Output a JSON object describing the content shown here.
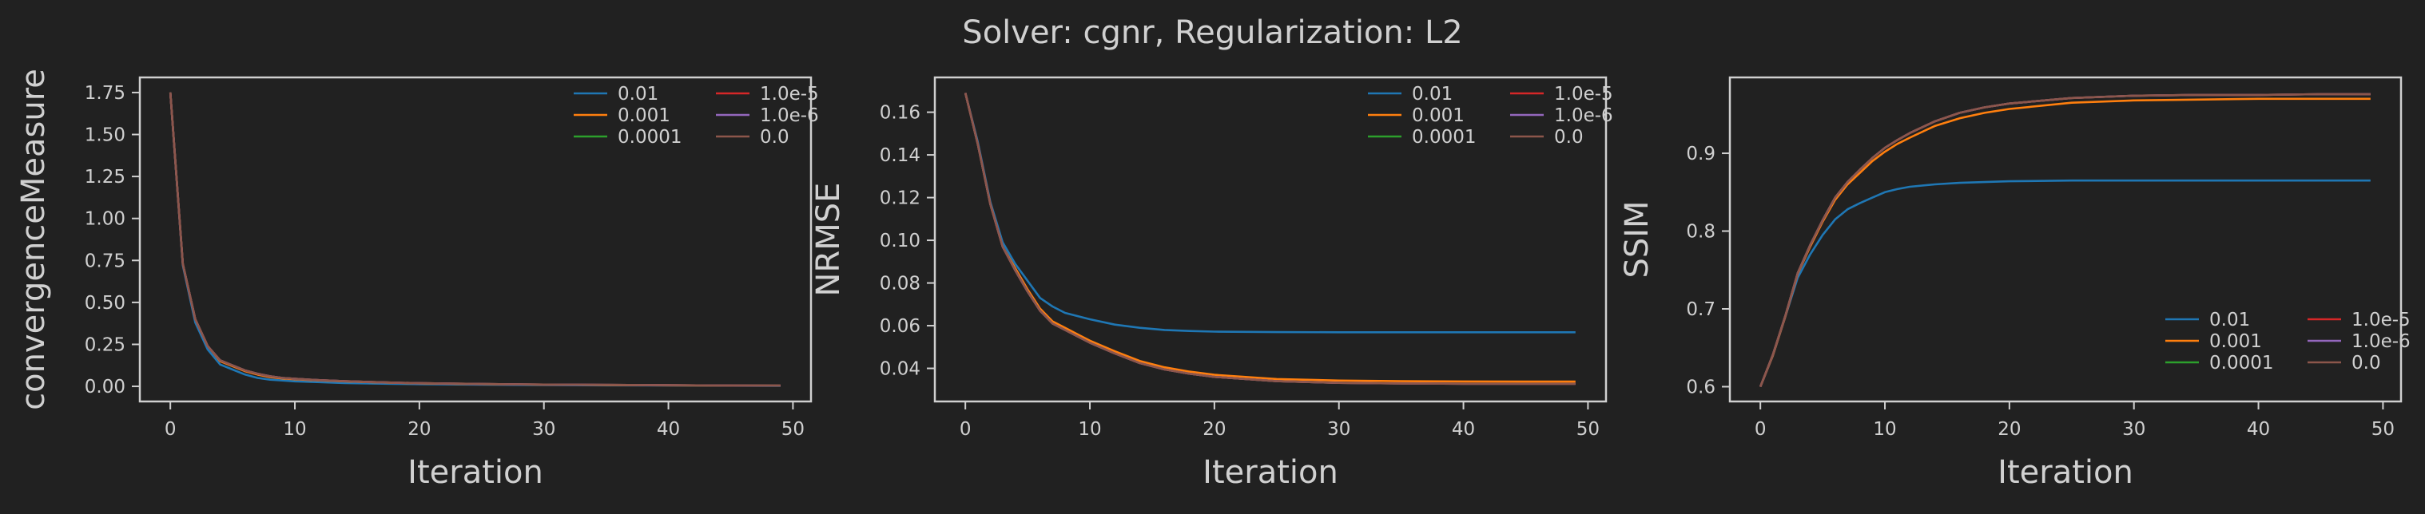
{
  "figure": {
    "title": "Solver: cgnr, Regularization: L2"
  },
  "colors": {
    "background": "#212121",
    "axes": "#d0d0d0",
    "series": [
      "#1f77b4",
      "#ff7f0e",
      "#2ca02c",
      "#d62728",
      "#9467bd",
      "#8c564b"
    ]
  },
  "chart_data": [
    {
      "type": "line",
      "title": "",
      "xlabel": "Iteration",
      "ylabel": "convergenceMeasure",
      "xlim": [
        -2.45,
        51.45
      ],
      "ylim": [
        -0.09,
        1.84
      ],
      "xticks": [
        "0",
        "10",
        "20",
        "30",
        "40",
        "50"
      ],
      "yticks": [
        "0.00",
        "0.25",
        "0.50",
        "0.75",
        "1.00",
        "1.25",
        "1.50",
        "1.75"
      ],
      "legend_position": "top-right",
      "x": [
        0,
        1,
        2,
        3,
        4,
        5,
        6,
        7,
        8,
        9,
        10,
        12,
        14,
        16,
        18,
        20,
        25,
        30,
        35,
        40,
        45,
        49
      ],
      "series": [
        {
          "name": "0.01",
          "values": [
            1.75,
            0.72,
            0.38,
            0.22,
            0.13,
            0.1,
            0.07,
            0.05,
            0.04,
            0.035,
            0.03,
            0.025,
            0.02,
            0.017,
            0.015,
            0.013,
            0.01,
            0.008,
            0.006,
            0.005,
            0.004,
            0.003
          ]
        },
        {
          "name": "0.001",
          "values": [
            1.75,
            0.73,
            0.4,
            0.24,
            0.15,
            0.12,
            0.09,
            0.07,
            0.055,
            0.047,
            0.042,
            0.035,
            0.03,
            0.025,
            0.021,
            0.018,
            0.013,
            0.01,
            0.008,
            0.006,
            0.005,
            0.004
          ]
        },
        {
          "name": "0.0001",
          "values": [
            1.75,
            0.73,
            0.4,
            0.24,
            0.155,
            0.125,
            0.095,
            0.075,
            0.06,
            0.05,
            0.045,
            0.037,
            0.031,
            0.026,
            0.022,
            0.019,
            0.014,
            0.011,
            0.009,
            0.007,
            0.005,
            0.004
          ]
        },
        {
          "name": "1.0e-5",
          "values": [
            1.75,
            0.73,
            0.4,
            0.24,
            0.155,
            0.125,
            0.095,
            0.075,
            0.06,
            0.05,
            0.045,
            0.037,
            0.031,
            0.026,
            0.022,
            0.019,
            0.014,
            0.011,
            0.009,
            0.007,
            0.005,
            0.004
          ]
        },
        {
          "name": "1.0e-6",
          "values": [
            1.75,
            0.73,
            0.4,
            0.24,
            0.155,
            0.125,
            0.095,
            0.075,
            0.06,
            0.05,
            0.045,
            0.037,
            0.031,
            0.026,
            0.022,
            0.019,
            0.014,
            0.011,
            0.009,
            0.007,
            0.005,
            0.004
          ]
        },
        {
          "name": "0.0",
          "values": [
            1.75,
            0.73,
            0.4,
            0.24,
            0.155,
            0.125,
            0.095,
            0.075,
            0.06,
            0.05,
            0.045,
            0.037,
            0.031,
            0.026,
            0.022,
            0.019,
            0.014,
            0.011,
            0.009,
            0.007,
            0.005,
            0.004
          ]
        }
      ]
    },
    {
      "type": "line",
      "title": "",
      "xlabel": "Iteration",
      "ylabel": "NRMSE",
      "xlim": [
        -2.45,
        51.45
      ],
      "ylim": [
        0.0245,
        0.1763
      ],
      "xticks": [
        "0",
        "10",
        "20",
        "30",
        "40",
        "50"
      ],
      "yticks": [
        "0.04",
        "0.06",
        "0.08",
        "0.10",
        "0.12",
        "0.14",
        "0.16"
      ],
      "legend_position": "top-right",
      "x": [
        0,
        1,
        2,
        3,
        4,
        5,
        6,
        7,
        8,
        9,
        10,
        12,
        14,
        16,
        18,
        20,
        25,
        30,
        35,
        40,
        45,
        49
      ],
      "series": [
        {
          "name": "0.01",
          "values": [
            0.169,
            0.146,
            0.118,
            0.099,
            0.089,
            0.081,
            0.073,
            0.069,
            0.066,
            0.0645,
            0.063,
            0.0605,
            0.059,
            0.058,
            0.0575,
            0.0572,
            0.057,
            0.0569,
            0.0569,
            0.0569,
            0.0569,
            0.0569
          ]
        },
        {
          "name": "0.001",
          "values": [
            0.169,
            0.145,
            0.117,
            0.097,
            0.087,
            0.077,
            0.068,
            0.062,
            0.059,
            0.056,
            0.053,
            0.048,
            0.0435,
            0.0405,
            0.0385,
            0.037,
            0.035,
            0.0343,
            0.034,
            0.0339,
            0.0338,
            0.0338
          ]
        },
        {
          "name": "0.0001",
          "values": [
            0.169,
            0.145,
            0.117,
            0.097,
            0.086,
            0.076,
            0.067,
            0.061,
            0.058,
            0.055,
            0.052,
            0.047,
            0.0425,
            0.0395,
            0.0375,
            0.036,
            0.034,
            0.0332,
            0.0329,
            0.0328,
            0.0328,
            0.0328
          ]
        },
        {
          "name": "1.0e-5",
          "values": [
            0.169,
            0.145,
            0.117,
            0.097,
            0.086,
            0.076,
            0.067,
            0.061,
            0.058,
            0.055,
            0.052,
            0.047,
            0.0425,
            0.0395,
            0.0375,
            0.036,
            0.034,
            0.0332,
            0.0329,
            0.0328,
            0.0328,
            0.0328
          ]
        },
        {
          "name": "1.0e-6",
          "values": [
            0.169,
            0.145,
            0.117,
            0.097,
            0.086,
            0.076,
            0.067,
            0.061,
            0.058,
            0.055,
            0.052,
            0.047,
            0.0425,
            0.0395,
            0.0375,
            0.036,
            0.034,
            0.0332,
            0.0329,
            0.0328,
            0.0328,
            0.0328
          ]
        },
        {
          "name": "0.0",
          "values": [
            0.169,
            0.145,
            0.117,
            0.097,
            0.086,
            0.076,
            0.067,
            0.061,
            0.058,
            0.055,
            0.052,
            0.047,
            0.0425,
            0.0395,
            0.0375,
            0.036,
            0.034,
            0.0332,
            0.0329,
            0.0328,
            0.0328,
            0.0328
          ]
        }
      ]
    },
    {
      "type": "line",
      "title": "",
      "xlabel": "Iteration",
      "ylabel": "SSIM",
      "xlim": [
        -2.45,
        51.45
      ],
      "ylim": [
        0.581,
        0.9975
      ],
      "xticks": [
        "0",
        "10",
        "20",
        "30",
        "40",
        "50"
      ],
      "yticks": [
        "0.6",
        "0.7",
        "0.8",
        "0.9"
      ],
      "legend_position": "lower-right",
      "x": [
        0,
        1,
        2,
        3,
        4,
        5,
        6,
        7,
        8,
        9,
        10,
        11,
        12,
        14,
        16,
        18,
        20,
        25,
        30,
        35,
        40,
        45,
        49
      ],
      "series": [
        {
          "name": "0.01",
          "values": [
            0.6,
            0.64,
            0.69,
            0.74,
            0.77,
            0.795,
            0.815,
            0.828,
            0.836,
            0.843,
            0.85,
            0.854,
            0.857,
            0.86,
            0.862,
            0.863,
            0.864,
            0.865,
            0.865,
            0.865,
            0.865,
            0.865,
            0.865
          ]
        },
        {
          "name": "0.001",
          "values": [
            0.6,
            0.64,
            0.69,
            0.745,
            0.78,
            0.812,
            0.84,
            0.86,
            0.875,
            0.89,
            0.902,
            0.912,
            0.92,
            0.935,
            0.945,
            0.952,
            0.957,
            0.965,
            0.968,
            0.969,
            0.97,
            0.97,
            0.97
          ]
        },
        {
          "name": "0.0001",
          "values": [
            0.6,
            0.641,
            0.691,
            0.746,
            0.782,
            0.814,
            0.843,
            0.863,
            0.879,
            0.894,
            0.907,
            0.917,
            0.926,
            0.941,
            0.952,
            0.959,
            0.964,
            0.971,
            0.974,
            0.975,
            0.975,
            0.976,
            0.976
          ]
        },
        {
          "name": "1.0e-5",
          "values": [
            0.6,
            0.641,
            0.691,
            0.746,
            0.782,
            0.814,
            0.843,
            0.863,
            0.879,
            0.894,
            0.907,
            0.917,
            0.926,
            0.941,
            0.952,
            0.959,
            0.964,
            0.971,
            0.974,
            0.975,
            0.975,
            0.976,
            0.976
          ]
        },
        {
          "name": "1.0e-6",
          "values": [
            0.6,
            0.641,
            0.691,
            0.746,
            0.782,
            0.814,
            0.843,
            0.863,
            0.879,
            0.894,
            0.907,
            0.917,
            0.926,
            0.941,
            0.952,
            0.959,
            0.964,
            0.971,
            0.974,
            0.975,
            0.975,
            0.976,
            0.976
          ]
        },
        {
          "name": "0.0",
          "values": [
            0.6,
            0.641,
            0.691,
            0.746,
            0.782,
            0.814,
            0.843,
            0.863,
            0.879,
            0.894,
            0.907,
            0.917,
            0.926,
            0.941,
            0.952,
            0.959,
            0.964,
            0.971,
            0.974,
            0.975,
            0.975,
            0.976,
            0.976
          ]
        }
      ]
    }
  ]
}
